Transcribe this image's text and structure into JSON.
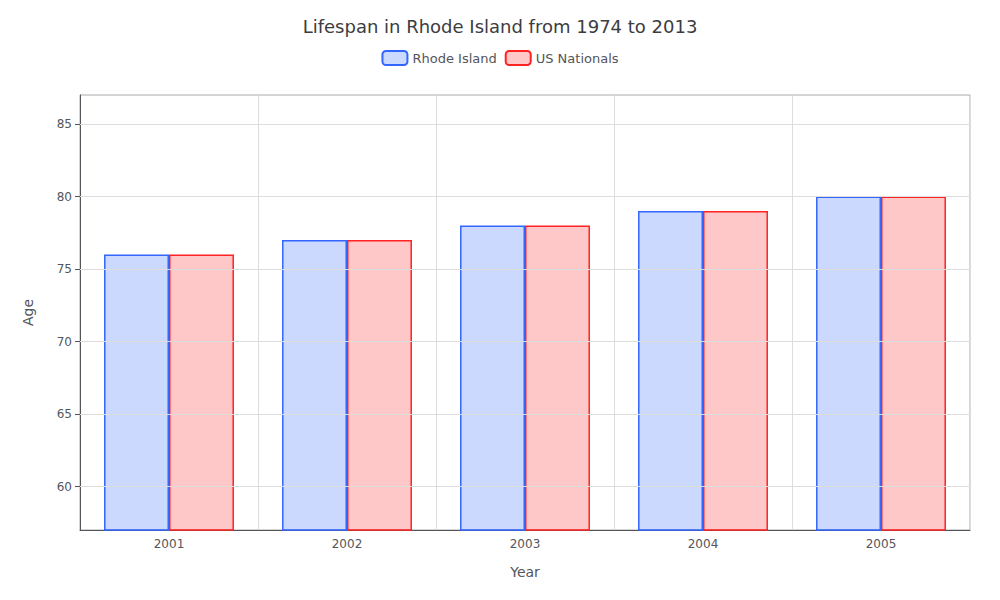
{
  "chart_data": {
    "type": "bar",
    "title": "Lifespan in Rhode Island from 1974 to 2013",
    "xlabel": "Year",
    "ylabel": "Age",
    "categories": [
      "2001",
      "2002",
      "2003",
      "2004",
      "2005"
    ],
    "series": [
      {
        "name": "Rhode Island",
        "color": "#3366ff",
        "values": [
          76,
          77,
          78,
          79,
          80
        ]
      },
      {
        "name": "US Nationals",
        "color": "#ff2222",
        "values": [
          76,
          77,
          78,
          79,
          80
        ]
      }
    ],
    "ylim": [
      57,
      87
    ],
    "yticks": [
      60,
      65,
      70,
      75,
      80,
      85
    ],
    "grid": true,
    "legend": "top"
  }
}
